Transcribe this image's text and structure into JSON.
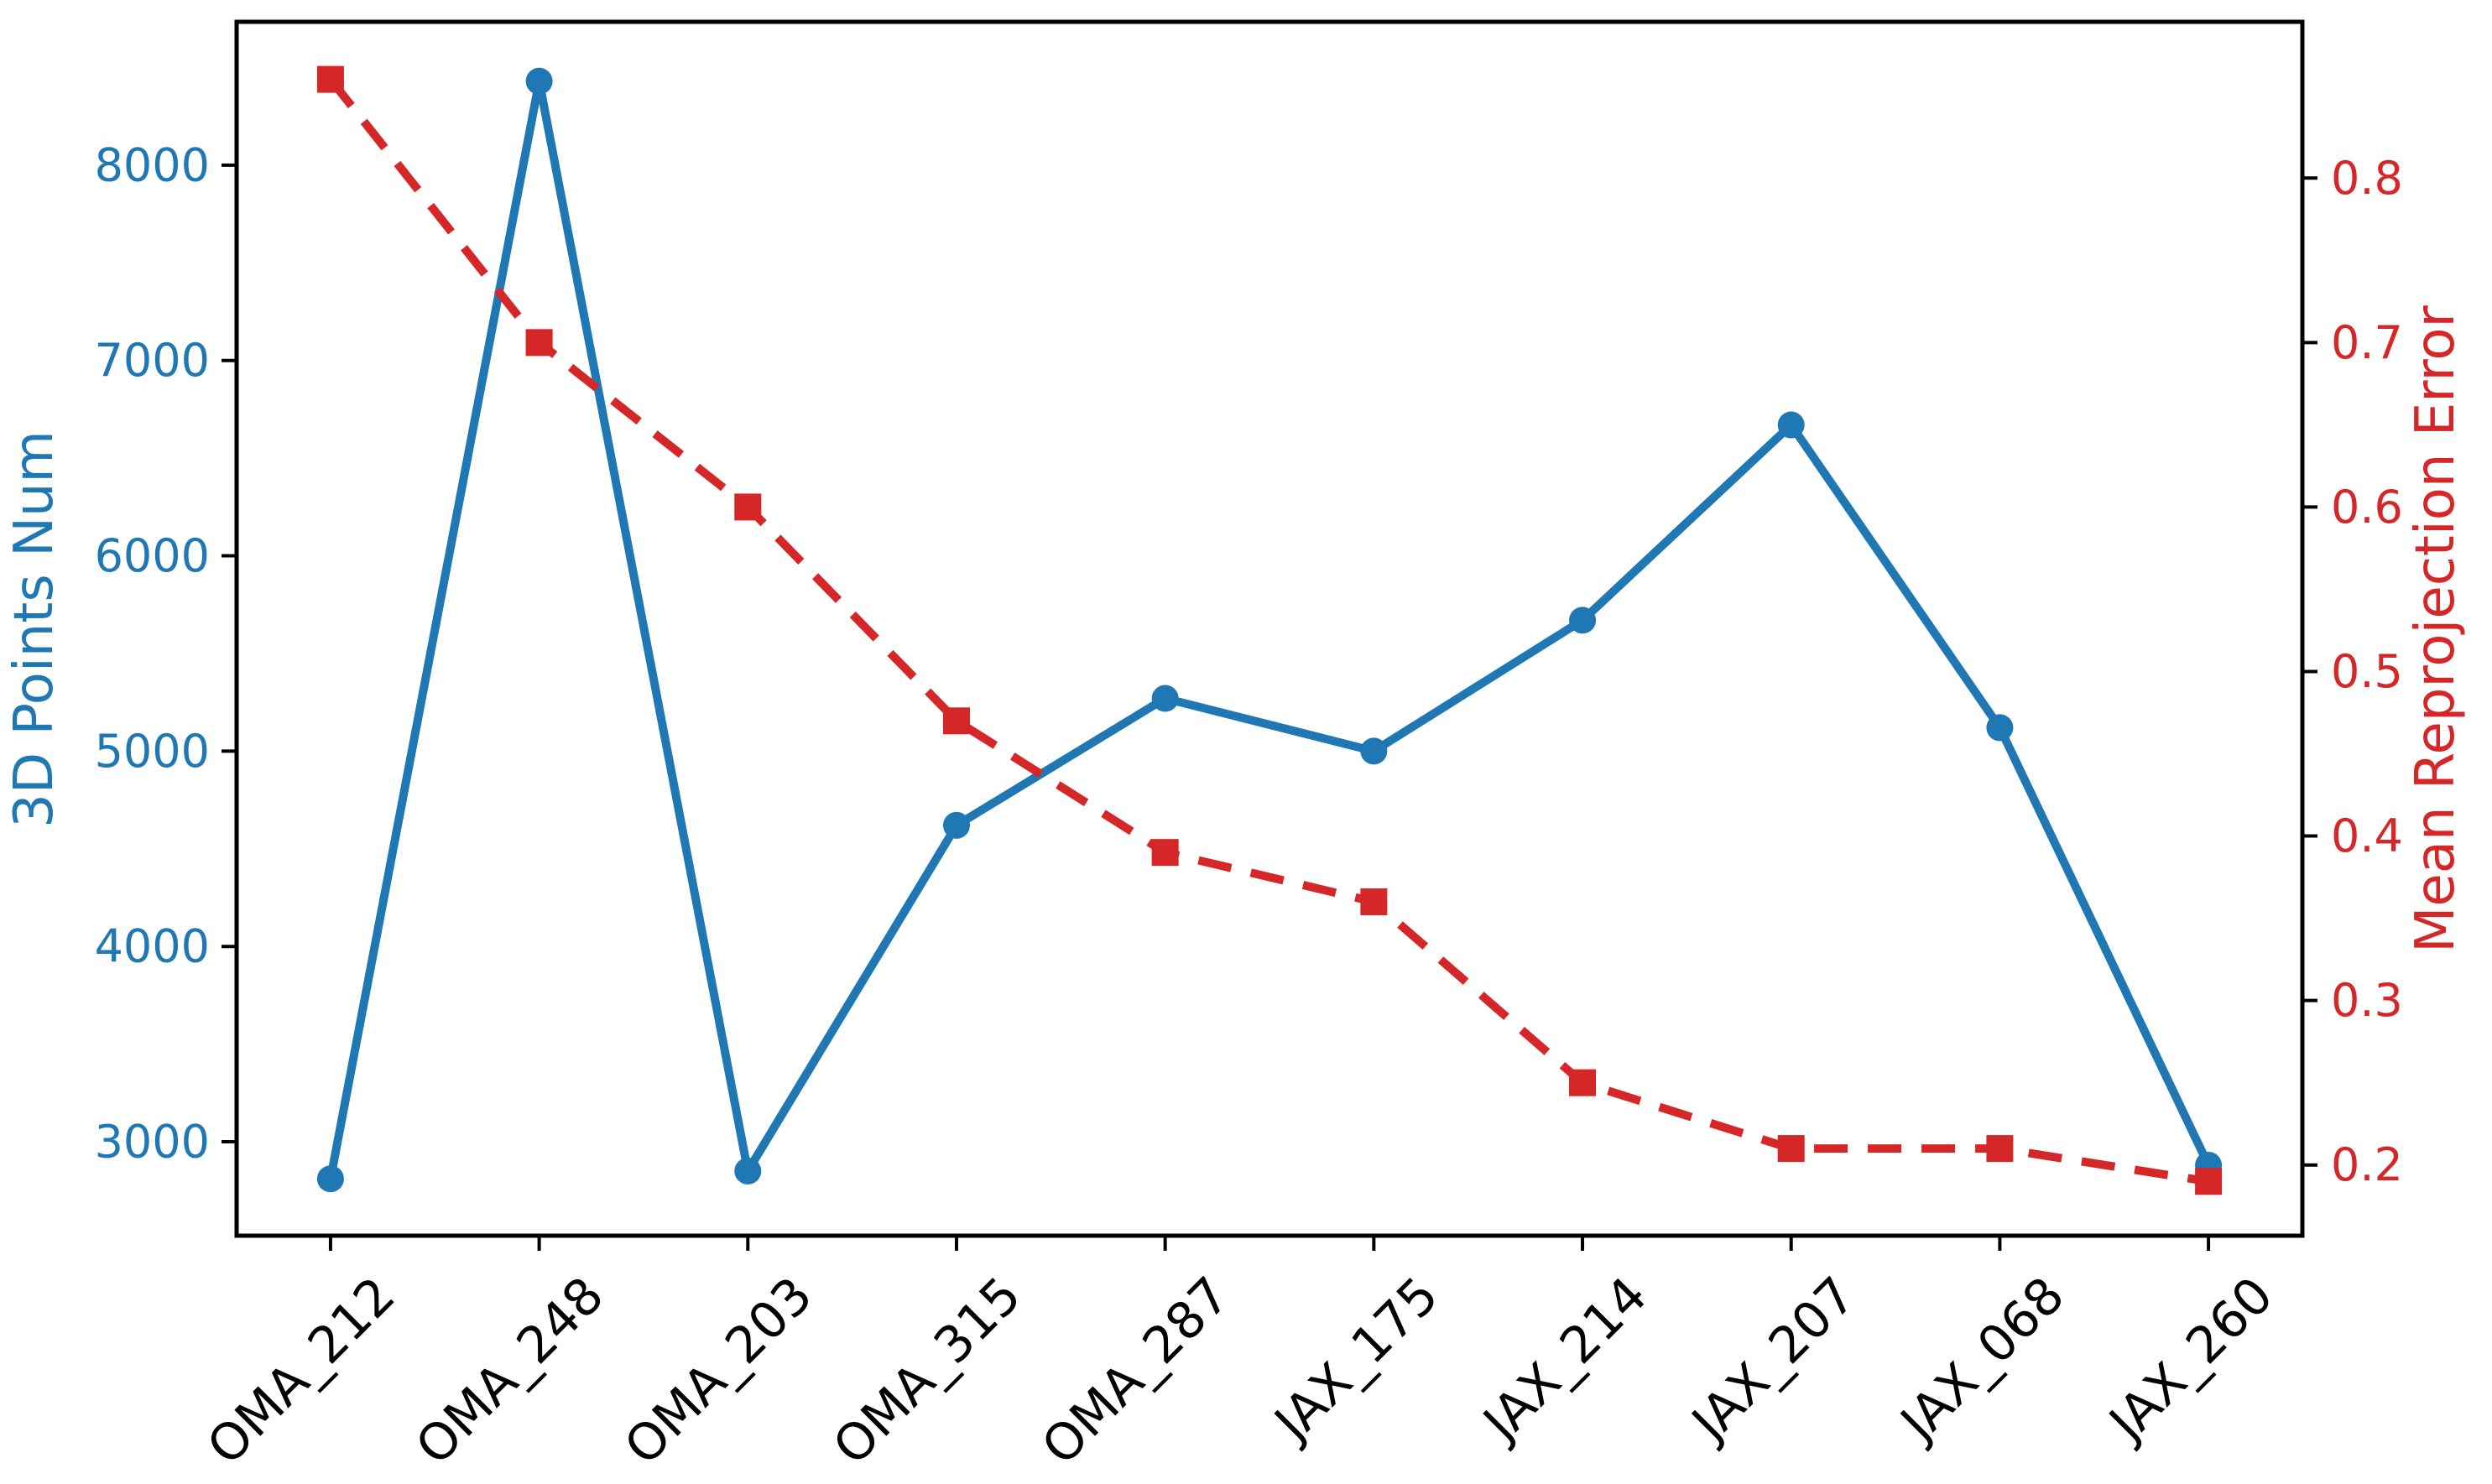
{
  "chart_data": {
    "type": "line",
    "title": "",
    "categories": [
      "OMA_212",
      "OMA_248",
      "OMA_203",
      "OMA_315",
      "OMA_287",
      "JAX_175",
      "JAX_214",
      "JAX_207",
      "JAX_068",
      "JAX_260"
    ],
    "series": [
      {
        "name": "3D Points Num",
        "axis": "left",
        "color": "#1f77b4",
        "marker": "circle",
        "line_style": "solid",
        "values": [
          2810,
          8430,
          2850,
          4620,
          5270,
          5000,
          5670,
          6670,
          5120,
          2880
        ]
      },
      {
        "name": "Mean Reprojection Error",
        "axis": "right",
        "color": "#d62728",
        "marker": "square",
        "line_style": "dashed",
        "values": [
          0.86,
          0.7,
          0.6,
          0.47,
          0.39,
          0.36,
          0.25,
          0.21,
          0.21,
          0.19
        ]
      }
    ],
    "left_axis": {
      "label": "3D Points Num",
      "color": "#1f77b4",
      "tick_values": [
        3000,
        4000,
        5000,
        6000,
        7000,
        8000
      ],
      "tick_labels": [
        "3000",
        "4000",
        "5000",
        "6000",
        "7000",
        "8000"
      ],
      "range": [
        2519,
        8734
      ]
    },
    "right_axis": {
      "label": "Mean Reprojection Error",
      "color": "#d62728",
      "tick_values": [
        0.2,
        0.3,
        0.4,
        0.5,
        0.6,
        0.7,
        0.8
      ],
      "tick_labels": [
        "0.2",
        "0.3",
        "0.4",
        "0.5",
        "0.6",
        "0.7",
        "0.8"
      ],
      "range": [
        0.157,
        0.895
      ]
    },
    "x_axis": {
      "range": [
        -0.45,
        9.45
      ],
      "tick_label_rotation": 45,
      "color": "#000000"
    },
    "grid": false,
    "legend": "none"
  }
}
